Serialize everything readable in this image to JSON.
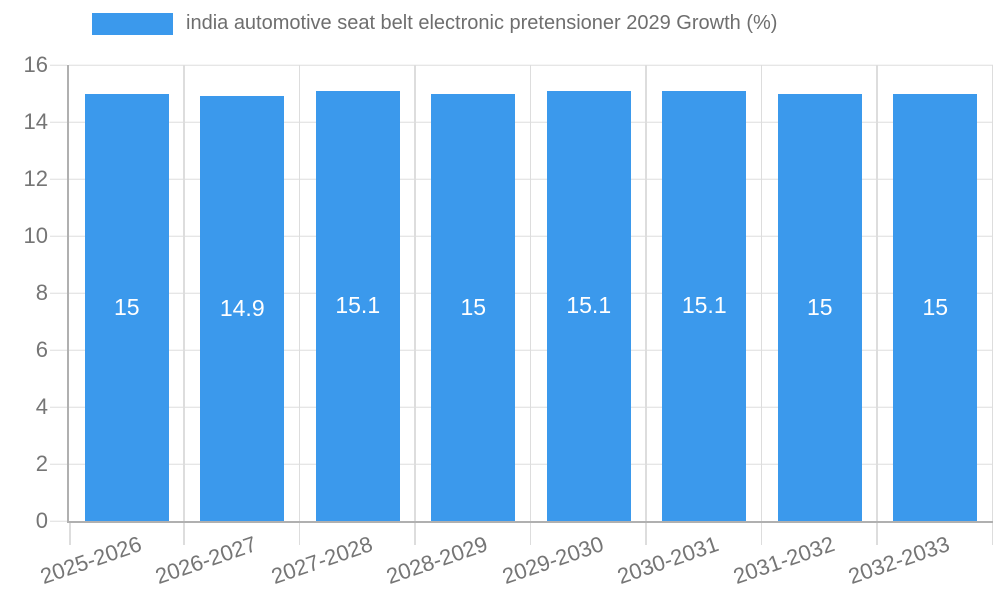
{
  "chart_data": {
    "type": "bar",
    "title": "",
    "legend": "india automotive seat belt electronic pretensioner 2029 Growth (%)",
    "legend_position": "top-left",
    "categories": [
      "2025-2026",
      "2026-2027",
      "2027-2028",
      "2028-2029",
      "2029-2030",
      "2030-2031",
      "2031-2032",
      "2032-2033"
    ],
    "values": [
      15,
      14.9,
      15.1,
      15,
      15.1,
      15.1,
      15,
      15
    ],
    "xlabel": "",
    "ylabel": "",
    "ylim": [
      0,
      16
    ],
    "yticks": [
      0,
      2,
      4,
      6,
      8,
      10,
      12,
      14,
      16
    ],
    "grid": true,
    "bar_width_fraction": 0.73,
    "colors": {
      "bar": "#3B99EC",
      "bar_label": "#ffffff",
      "grid": "#dddddd",
      "axis": "#b0b0b0",
      "tick_text": "#757575",
      "legend_text": "#6e6e6e"
    }
  }
}
